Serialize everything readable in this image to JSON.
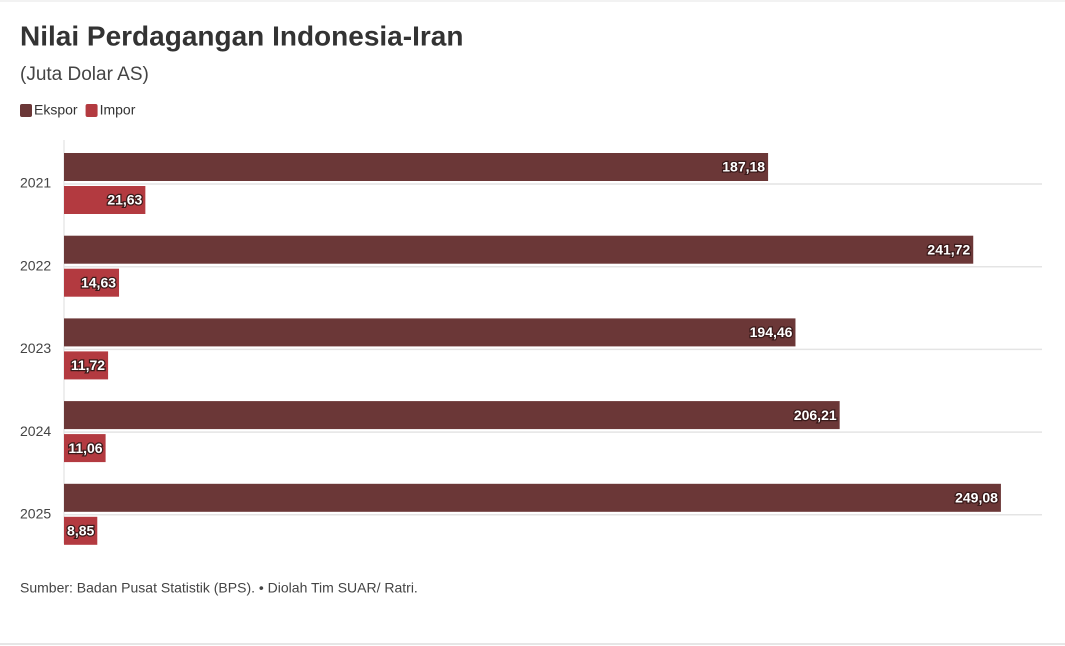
{
  "chart_data": {
    "type": "bar",
    "orientation": "horizontal",
    "title": "Nilai Perdagangan Indonesia-Iran",
    "subtitle": "(Juta Dolar AS)",
    "categories": [
      "2021",
      "2022",
      "2023",
      "2024",
      "2025"
    ],
    "series": [
      {
        "name": "Ekspor",
        "color": "#6b3737",
        "values": [
          187.18,
          241.72,
          194.46,
          206.21,
          249.08
        ],
        "value_labels": [
          "187,18",
          "241,72",
          "194,46",
          "206,21",
          "249,08"
        ]
      },
      {
        "name": "Impor",
        "color": "#b33a40",
        "values": [
          21.63,
          14.63,
          11.72,
          11.06,
          8.85
        ],
        "value_labels": [
          "21,63",
          "14,63",
          "11,72",
          "11,06",
          "8,85"
        ]
      }
    ],
    "xlim": [
      0,
      260
    ],
    "legend": "top-left",
    "source": "Sumber: Badan Pusat Statistik (BPS). • Diolah Tim SUAR/ Ratri."
  }
}
